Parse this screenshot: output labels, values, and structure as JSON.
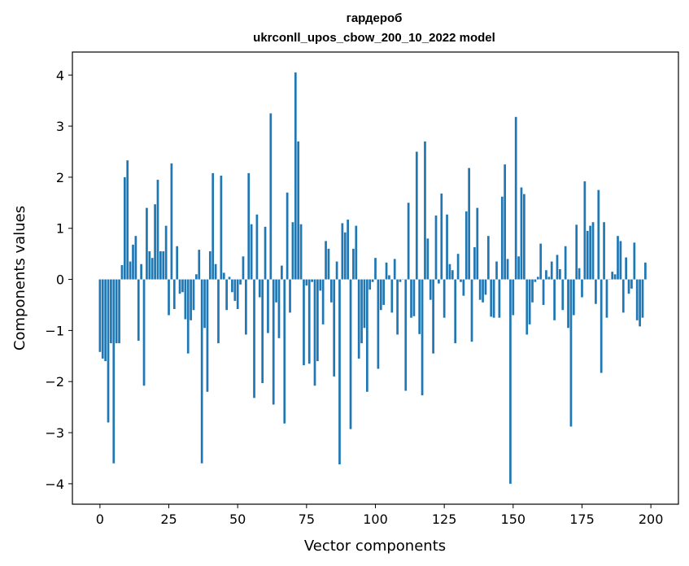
{
  "chart_data": {
    "type": "bar",
    "title": "гардероб",
    "subtitle": "ukrconll_upos_cbow_200_10_2022 model",
    "xlabel": "Vector components",
    "ylabel": "Components values",
    "xlim": [
      -10,
      210
    ],
    "ylim": [
      -4.4,
      4.45
    ],
    "xticks": [
      0,
      25,
      50,
      75,
      100,
      125,
      150,
      175,
      200
    ],
    "yticks": [
      4,
      3,
      2,
      1,
      0,
      -1,
      -2,
      -3,
      -4
    ],
    "ytick_labels": [
      "4",
      "3",
      "2",
      "1",
      "0",
      "−1",
      "−2",
      "−3",
      "−4"
    ],
    "bar_color": "#1f77b4",
    "grid": false,
    "values": [
      -1.42,
      -1.55,
      -1.6,
      -2.8,
      -1.25,
      -3.6,
      -1.25,
      -1.25,
      0.28,
      2.0,
      2.33,
      0.35,
      0.68,
      0.85,
      -1.2,
      0.3,
      -2.08,
      1.4,
      0.55,
      0.42,
      1.47,
      1.95,
      0.55,
      0.55,
      1.05,
      -0.7,
      2.27,
      -0.58,
      0.65,
      -0.28,
      -0.25,
      -0.78,
      -1.45,
      -0.8,
      -0.6,
      0.1,
      0.58,
      -3.6,
      -0.95,
      -2.2,
      0.55,
      2.08,
      0.3,
      -1.25,
      2.03,
      0.13,
      -0.6,
      0.05,
      -0.25,
      -0.42,
      -0.58,
      -0.1,
      0.45,
      -1.08,
      2.08,
      1.08,
      -2.32,
      1.27,
      -0.35,
      -2.03,
      1.03,
      -1.05,
      3.25,
      -2.45,
      -0.45,
      -1.15,
      0.27,
      -2.82,
      1.7,
      -0.65,
      1.12,
      4.05,
      2.7,
      1.08,
      -1.68,
      -0.12,
      -1.65,
      -0.05,
      -2.08,
      -1.6,
      -0.22,
      -0.88,
      0.75,
      0.6,
      -0.45,
      -1.9,
      0.35,
      -3.62,
      1.1,
      0.92,
      1.17,
      -2.93,
      0.6,
      1.05,
      -1.55,
      -1.25,
      -0.95,
      -2.2,
      -0.2,
      -0.05,
      0.42,
      -1.75,
      -0.6,
      -0.5,
      0.33,
      0.08,
      -0.65,
      0.4,
      -1.08,
      -0.05,
      0.0,
      -2.18,
      1.5,
      -0.75,
      -0.72,
      2.5,
      -1.07,
      -2.27,
      2.7,
      0.8,
      -0.4,
      -1.45,
      1.25,
      -0.08,
      1.68,
      -0.75,
      1.27,
      0.3,
      0.18,
      -1.25,
      0.5,
      -0.05,
      -0.32,
      1.33,
      2.18,
      -1.22,
      0.63,
      1.4,
      -0.4,
      -0.45,
      -0.3,
      0.85,
      -0.73,
      -0.75,
      0.35,
      -0.75,
      1.62,
      2.25,
      0.4,
      -4.0,
      -0.7,
      3.18,
      0.45,
      1.8,
      1.67,
      -1.08,
      -0.88,
      -0.45,
      -0.05,
      0.05,
      0.7,
      -0.5,
      0.18,
      0.05,
      0.35,
      -0.8,
      0.48,
      0.2,
      -0.6,
      0.65,
      -0.95,
      -2.88,
      -0.7,
      1.07,
      0.22,
      -0.35,
      1.92,
      0.95,
      1.05,
      1.12,
      -0.48,
      1.75,
      -1.83,
      1.12,
      -0.75,
      0.0,
      0.15,
      0.1,
      0.85,
      0.75,
      -0.65,
      0.43,
      -0.28,
      -0.18,
      0.72,
      -0.8,
      -0.92,
      -0.75,
      0.33
    ]
  }
}
